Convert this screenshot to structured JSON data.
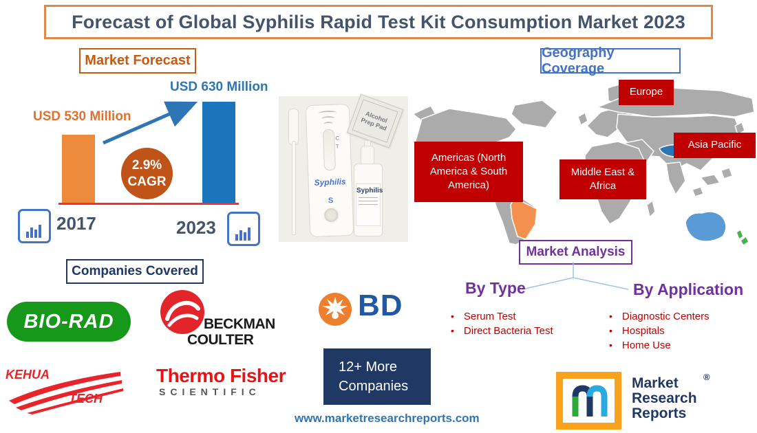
{
  "title": "Forecast of Global Syphilis Rapid Test Kit Consumption Market 2023",
  "market_forecast": {
    "label": "Market Forecast",
    "chart_data": {
      "type": "bar",
      "categories": [
        "2017",
        "2023"
      ],
      "values": [
        530,
        630
      ],
      "value_labels": [
        "USD 530 Million",
        "USD 630 Million"
      ],
      "cagr_value": "2.9%",
      "cagr_label": "CAGR",
      "bar_colors": [
        "#ED8A3C",
        "#1B75BC"
      ],
      "value_label_colors": [
        "#E0712F",
        "#2E75B6"
      ],
      "cagr_circle_color": "#C05317",
      "baseline_color": "#FF2B2B",
      "title": "Market Forecast",
      "xlabel": "",
      "ylabel": "",
      "ylim": [
        0,
        700
      ]
    }
  },
  "product_image": {
    "cassette_label": "Syphilis",
    "ct_c": "C",
    "ct_t": "T",
    "well_label": "S",
    "bottle_label": "Syphilis",
    "pad_label_line1": "Alcohol",
    "pad_label_line2": "Prep Pad"
  },
  "geography": {
    "label": "Geography Coverage",
    "regions": [
      "Europe",
      "Asia Pacific",
      "Americas (North America & South America)",
      "Middle East & Africa"
    ],
    "region_box_color": "#C00000",
    "map_colors": {
      "land": "#ABABAB",
      "usa": "#4472C4",
      "brazil": "#F4914E",
      "mongolia": "#2E75B6",
      "australia": "#5B9BD5",
      "new_zealand": "#4CAF50"
    }
  },
  "market_analysis": {
    "label": "Market Analysis",
    "bullet": "•",
    "by_type": {
      "label": "By Type",
      "items": [
        "Serum Test",
        "Direct Bacteria Test"
      ]
    },
    "by_application": {
      "label": "By Application",
      "items": [
        "Diagnostic Centers",
        "Hospitals",
        "Home Use"
      ]
    }
  },
  "companies": {
    "label": "Companies Covered",
    "bio_rad": "BIO-RAD",
    "beckman_line1": "BECKMAN",
    "beckman_line2": "COULTER",
    "bd": "BD",
    "kehua_line1": "KEHUA",
    "kehua_line2": "TECH",
    "thermo_line1": "Thermo Fisher",
    "thermo_line2": "SCIENTIFIC",
    "more_line1": "12+ More",
    "more_line2": "Companies"
  },
  "footer": {
    "website": "www.marketresearchreports.com"
  },
  "brand": {
    "logo_line1": "Market",
    "logo_line2": "Research",
    "logo_line3": "Reports",
    "reg_mark": "®",
    "accent_orange": "#F9A21B",
    "navy": "#1F3864"
  }
}
